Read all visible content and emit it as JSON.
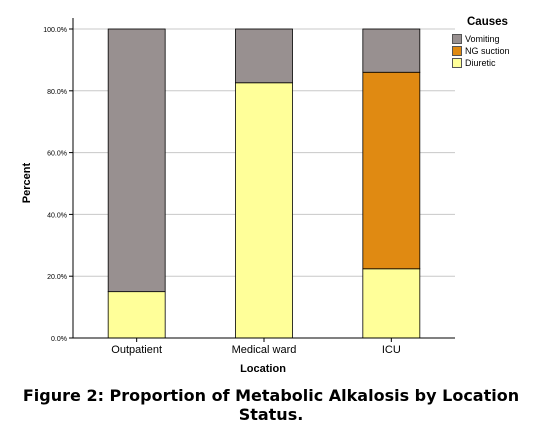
{
  "chart_data": {
    "type": "bar",
    "stacked": true,
    "categories": [
      "Outpatient",
      "Medical ward",
      "ICU"
    ],
    "series": [
      {
        "name": "Diuretic",
        "color": "#ffff99",
        "values": [
          15.0,
          82.6,
          22.4
        ]
      },
      {
        "name": "NG suction",
        "color": "#e08a12",
        "values": [
          0,
          0,
          63.6
        ]
      },
      {
        "name": "Vomiting",
        "color": "#989090",
        "values": [
          85.0,
          17.4,
          14.0
        ]
      }
    ],
    "yticks": [
      "0.0%",
      "20.0%",
      "40.0%",
      "60.0%",
      "80.0%",
      "100.0%"
    ],
    "xlabel": "Location",
    "ylabel": "Percent",
    "ylim": [
      0,
      100
    ],
    "grid": true,
    "legend": {
      "title": "Causes",
      "position": "top-right",
      "items": [
        {
          "label": "Vomiting",
          "color": "#989090"
        },
        {
          "label": "NG suction",
          "color": "#e08a12"
        },
        {
          "label": "Diuretic",
          "color": "#ffff99"
        }
      ]
    }
  },
  "caption": "Figure 2: Proportion of Metabolic Alkalosis by Location Status."
}
